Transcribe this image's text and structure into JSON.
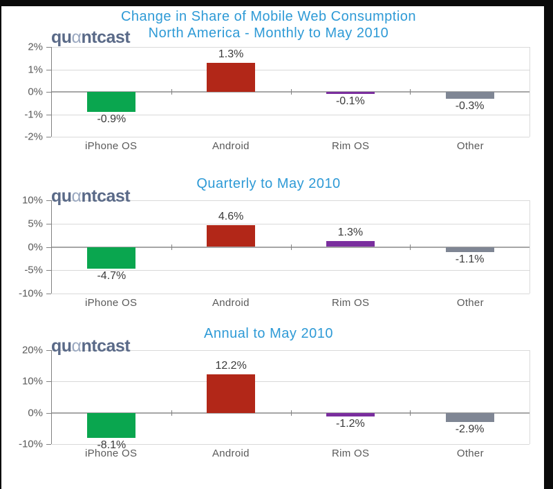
{
  "logo": {
    "pre": "qu",
    "alpha": "α",
    "post": "ntcast"
  },
  "colors": {
    "title_blue": "#2E9AD6",
    "green": "#0AA64F",
    "red": "#B22718",
    "purple": "#7A2E9E",
    "gray": "#7F8694",
    "axis_text": "#595959",
    "grid": "#D9D9D9",
    "zero_line": "#A6A6A6",
    "axis_line": "#808080",
    "value_text": "#3A3A3A",
    "frame_black": "#0a0a0a",
    "logo_main": "#5A6A88",
    "logo_alpha": "#9AA8C0"
  },
  "chart_data": [
    {
      "type": "bar",
      "title_line1": "Change in Share of Mobile Web Consumption",
      "title_line2": "North America - Monthly to May 2010",
      "categories": [
        "iPhone OS",
        "Android",
        "Rim OS",
        "Other"
      ],
      "values": [
        -0.9,
        1.3,
        -0.1,
        -0.3
      ],
      "value_labels": [
        "-0.9%",
        "1.3%",
        "-0.1%",
        "-0.3%"
      ],
      "bar_colors": [
        "green",
        "red",
        "purple",
        "gray"
      ],
      "yticks": [
        2,
        1,
        0,
        -1,
        -2
      ],
      "ytick_labels": [
        "2%",
        "1%",
        "0%",
        "-1%",
        "-2%"
      ],
      "ylim": [
        -2,
        2
      ],
      "grid": true,
      "legend": "none",
      "xlabel": "",
      "ylabel": ""
    },
    {
      "type": "bar",
      "title": "Quarterly to May 2010",
      "categories": [
        "iPhone OS",
        "Android",
        "Rim OS",
        "Other"
      ],
      "values": [
        -4.7,
        4.6,
        1.3,
        -1.1
      ],
      "value_labels": [
        "-4.7%",
        "4.6%",
        "1.3%",
        "-1.1%"
      ],
      "bar_colors": [
        "green",
        "red",
        "purple",
        "gray"
      ],
      "yticks": [
        10,
        5,
        0,
        -5,
        -10
      ],
      "ytick_labels": [
        "10%",
        "5%",
        "0%",
        "-5%",
        "-10%"
      ],
      "ylim": [
        -10,
        10
      ],
      "grid": true,
      "legend": "none",
      "xlabel": "",
      "ylabel": ""
    },
    {
      "type": "bar",
      "title": "Annual to May 2010",
      "categories": [
        "iPhone OS",
        "Android",
        "Rim OS",
        "Other"
      ],
      "values": [
        -8.1,
        12.2,
        -1.2,
        -2.9
      ],
      "value_labels": [
        "-8.1%",
        "12.2%",
        "-1.2%",
        "-2.9%"
      ],
      "bar_colors": [
        "green",
        "red",
        "purple",
        "gray"
      ],
      "yticks": [
        20,
        10,
        0,
        -10
      ],
      "ytick_labels": [
        "20%",
        "10%",
        "0%",
        "-10%"
      ],
      "ylim": [
        -10,
        20
      ],
      "grid": true,
      "legend": "none",
      "xlabel": "",
      "ylabel": ""
    }
  ]
}
